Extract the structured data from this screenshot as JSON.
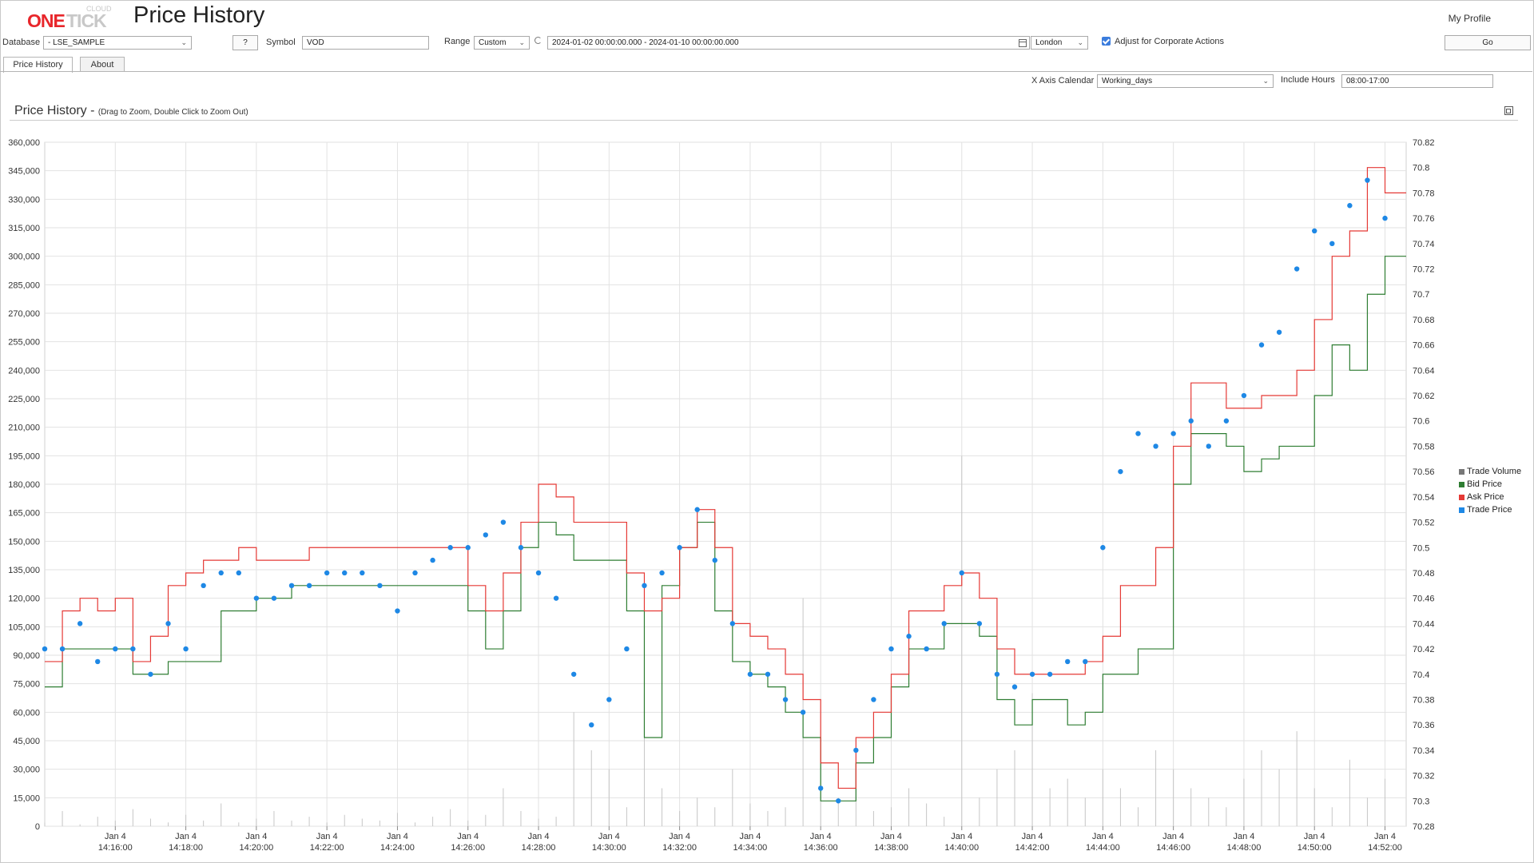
{
  "header": {
    "logo_one": "ONE",
    "logo_tick": "TICK",
    "logo_cloud": "CLOUD",
    "title": "Price History",
    "my_profile": "My Profile"
  },
  "controls": {
    "database_label": "Database",
    "database_value": "- LSE_SAMPLE",
    "help_button": "?",
    "symbol_label": "Symbol",
    "symbol_value": "VOD",
    "range_label": "Range",
    "range_value": "Custom",
    "date_range": "2024-01-02 00:00:00.000 - 2024-01-10 00:00:00.000",
    "timezone": "London",
    "adjust_label": "Adjust for Corporate Actions",
    "adjust_checked": true,
    "go_button": "Go",
    "x_axis_calendar_label": "X Axis Calendar",
    "x_axis_calendar_value": "Working_days",
    "include_hours_label": "Include Hours",
    "include_hours_value": "08:00-17:00"
  },
  "tabs": [
    {
      "label": "Price History",
      "active": true
    },
    {
      "label": "About",
      "active": false
    }
  ],
  "panel": {
    "title": "Price History",
    "subtitle": "(Drag to Zoom, Double Click to Zoom Out)"
  },
  "chart_data": {
    "type": "line",
    "x_ticks": [
      {
        "date": "Jan 4",
        "time": "14:16:00"
      },
      {
        "date": "Jan 4",
        "time": "14:18:00"
      },
      {
        "date": "Jan 4",
        "time": "14:20:00"
      },
      {
        "date": "Jan 4",
        "time": "14:22:00"
      },
      {
        "date": "Jan 4",
        "time": "14:24:00"
      },
      {
        "date": "Jan 4",
        "time": "14:26:00"
      },
      {
        "date": "Jan 4",
        "time": "14:28:00"
      },
      {
        "date": "Jan 4",
        "time": "14:30:00"
      },
      {
        "date": "Jan 4",
        "time": "14:32:00"
      },
      {
        "date": "Jan 4",
        "time": "14:34:00"
      },
      {
        "date": "Jan 4",
        "time": "14:36:00"
      },
      {
        "date": "Jan 4",
        "time": "14:38:00"
      },
      {
        "date": "Jan 4",
        "time": "14:40:00"
      },
      {
        "date": "Jan 4",
        "time": "14:42:00"
      },
      {
        "date": "Jan 4",
        "time": "14:44:00"
      },
      {
        "date": "Jan 4",
        "time": "14:46:00"
      },
      {
        "date": "Jan 4",
        "time": "14:48:00"
      },
      {
        "date": "Jan 4",
        "time": "14:50:00"
      },
      {
        "date": "Jan 4",
        "time": "14:52:00"
      }
    ],
    "left_axis": {
      "ticks": [
        "0",
        "15,000",
        "30,000",
        "45,000",
        "60,000",
        "75,000",
        "90,000",
        "105,000",
        "120,000",
        "135,000",
        "150,000",
        "165,000",
        "180,000",
        "195,000",
        "210,000",
        "225,000",
        "240,000",
        "255,000",
        "270,000",
        "285,000",
        "300,000",
        "315,000",
        "330,000",
        "345,000",
        "360,000"
      ],
      "ylim": [
        0,
        360000
      ]
    },
    "right_axis": {
      "ticks": [
        "70.28",
        "70.3",
        "70.32",
        "70.34",
        "70.36",
        "70.38",
        "70.4",
        "70.42",
        "70.44",
        "70.46",
        "70.48",
        "70.5",
        "70.52",
        "70.54",
        "70.56",
        "70.58",
        "70.6",
        "70.62",
        "70.64",
        "70.66",
        "70.68",
        "70.7",
        "70.72",
        "70.74",
        "70.76",
        "70.78",
        "70.8",
        "70.82"
      ],
      "ylim": [
        70.28,
        70.82
      ]
    },
    "grid": true,
    "legend_position": "right",
    "minutes": [
      14.0,
      14.5,
      15.0,
      15.5,
      16.0,
      16.5,
      17.0,
      17.5,
      18.0,
      18.5,
      19.0,
      19.5,
      20.0,
      20.5,
      21.0,
      21.5,
      22.0,
      22.5,
      23.0,
      23.5,
      24.0,
      24.5,
      25.0,
      25.5,
      26.0,
      26.5,
      27.0,
      27.5,
      28.0,
      28.5,
      29.0,
      29.5,
      30.0,
      30.5,
      31.0,
      31.5,
      32.0,
      32.5,
      33.0,
      33.5,
      34.0,
      34.5,
      35.0,
      35.5,
      36.0,
      36.5,
      37.0,
      37.5,
      38.0,
      38.5,
      39.0,
      39.5,
      40.0,
      40.5,
      41.0,
      41.5,
      42.0,
      42.5,
      43.0,
      43.5,
      44.0,
      44.5,
      45.0,
      45.5,
      46.0,
      46.5,
      47.0,
      47.5,
      48.0,
      48.5,
      49.0,
      49.5,
      50.0,
      50.5,
      51.0,
      51.5,
      52.0
    ],
    "series": [
      {
        "name": "Trade Volume",
        "color": "#777777",
        "values": [
          2000,
          8000,
          1000,
          5000,
          3000,
          9000,
          4000,
          2000,
          6000,
          3000,
          12000,
          2000,
          4000,
          8000,
          3000,
          5000,
          2000,
          6000,
          4000,
          3000,
          7000,
          2000,
          5000,
          9000,
          3000,
          6000,
          20000,
          8000,
          4000,
          5000,
          60000,
          40000,
          30000,
          10000,
          70000,
          20000,
          8000,
          15000,
          10000,
          30000,
          12000,
          8000,
          10000,
          120000,
          40000,
          15000,
          30000,
          8000,
          10000,
          20000,
          12000,
          5000,
          195000,
          15000,
          30000,
          40000,
          70000,
          20000,
          25000,
          15000,
          30000,
          20000,
          10000,
          40000,
          30000,
          20000,
          15000,
          10000,
          25000,
          40000,
          30000,
          50000,
          20000,
          10000,
          35000,
          15000,
          25000
        ]
      },
      {
        "name": "Bid Price",
        "color": "#2e7d32",
        "values": [
          70.39,
          70.42,
          70.42,
          70.42,
          70.42,
          70.4,
          70.4,
          70.41,
          70.41,
          70.41,
          70.45,
          70.45,
          70.46,
          70.46,
          70.47,
          70.47,
          70.47,
          70.47,
          70.47,
          70.47,
          70.47,
          70.47,
          70.47,
          70.47,
          70.45,
          70.42,
          70.45,
          70.5,
          70.52,
          70.51,
          70.49,
          70.49,
          70.49,
          70.45,
          70.35,
          70.47,
          70.5,
          70.52,
          70.45,
          70.41,
          70.4,
          70.39,
          70.37,
          70.35,
          70.3,
          70.3,
          70.33,
          70.35,
          70.39,
          70.42,
          70.42,
          70.44,
          70.44,
          70.43,
          70.38,
          70.36,
          70.38,
          70.38,
          70.36,
          70.37,
          70.4,
          70.4,
          70.42,
          70.42,
          70.55,
          70.59,
          70.59,
          70.58,
          70.56,
          70.57,
          70.58,
          70.58,
          70.62,
          70.66,
          70.64,
          70.7,
          70.73
        ]
      },
      {
        "name": "Ask Price",
        "color": "#e53935",
        "values": [
          70.41,
          70.45,
          70.46,
          70.45,
          70.46,
          70.41,
          70.43,
          70.47,
          70.48,
          70.49,
          70.49,
          70.5,
          70.49,
          70.49,
          70.49,
          70.5,
          70.5,
          70.5,
          70.5,
          70.5,
          70.5,
          70.5,
          70.5,
          70.5,
          70.47,
          70.45,
          70.48,
          70.52,
          70.55,
          70.54,
          70.52,
          70.52,
          70.52,
          70.48,
          70.45,
          70.46,
          70.5,
          70.53,
          70.5,
          70.44,
          70.43,
          70.42,
          70.4,
          70.38,
          70.33,
          70.31,
          70.35,
          70.37,
          70.4,
          70.45,
          70.45,
          70.47,
          70.48,
          70.46,
          70.42,
          70.4,
          70.4,
          70.4,
          70.4,
          70.41,
          70.43,
          70.47,
          70.47,
          70.5,
          70.58,
          70.63,
          70.63,
          70.61,
          70.61,
          70.62,
          70.62,
          70.64,
          70.68,
          70.73,
          70.75,
          70.8,
          70.78
        ]
      },
      {
        "name": "Trade Price",
        "color": "#1e88e5",
        "values": [
          70.42,
          70.42,
          70.44,
          70.41,
          70.42,
          70.42,
          70.4,
          70.44,
          70.42,
          70.47,
          70.48,
          70.48,
          70.46,
          70.46,
          70.47,
          70.47,
          70.48,
          70.48,
          70.48,
          70.47,
          70.45,
          70.48,
          70.49,
          70.5,
          70.5,
          70.51,
          70.52,
          70.5,
          70.48,
          70.46,
          70.4,
          70.36,
          70.38,
          70.42,
          70.47,
          70.48,
          70.5,
          70.53,
          70.49,
          70.44,
          70.4,
          70.4,
          70.38,
          70.37,
          70.31,
          70.3,
          70.34,
          70.38,
          70.42,
          70.43,
          70.42,
          70.44,
          70.48,
          70.44,
          70.4,
          70.39,
          70.4,
          70.4,
          70.41,
          70.41,
          70.5,
          70.56,
          70.59,
          70.58,
          70.59,
          70.6,
          70.58,
          70.6,
          70.62,
          70.66,
          70.67,
          70.72,
          70.75,
          70.74,
          70.77,
          70.79,
          70.76
        ]
      }
    ]
  }
}
